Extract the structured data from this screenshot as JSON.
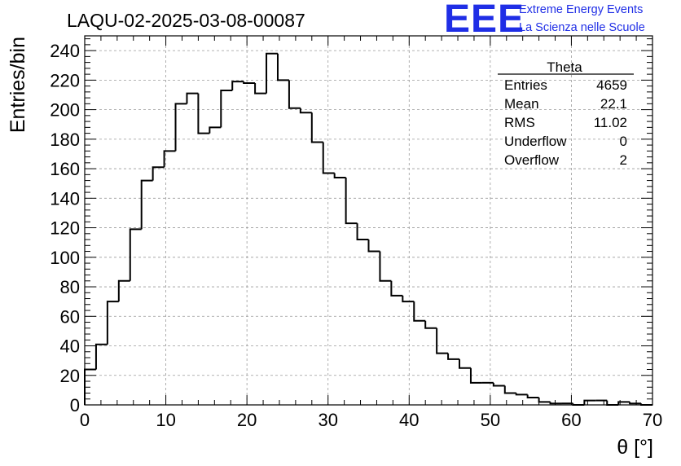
{
  "chart_data": {
    "type": "bar",
    "title": "LAQU-02-2025-03-08-00087",
    "xlabel": "θ [°]",
    "ylabel": "Entries/bin",
    "xlim": [
      0,
      70
    ],
    "ylim": [
      0,
      250
    ],
    "x_ticks": [
      0,
      10,
      20,
      30,
      40,
      50,
      60,
      70
    ],
    "y_ticks": [
      0,
      20,
      40,
      60,
      80,
      100,
      120,
      140,
      160,
      180,
      200,
      220,
      240
    ],
    "grid": true,
    "bin_width": 1.4,
    "bin_low_edges": [
      0,
      1.4,
      2.8,
      4.2,
      5.6,
      7.0,
      8.4,
      9.8,
      11.2,
      12.6,
      14.0,
      15.4,
      16.8,
      18.2,
      19.6,
      21.0,
      22.4,
      23.8,
      25.2,
      26.6,
      28.0,
      29.4,
      30.8,
      32.2,
      33.6,
      35.0,
      36.4,
      37.8,
      39.2,
      40.6,
      42.0,
      43.4,
      44.8,
      46.2,
      47.6,
      49.0,
      50.4,
      51.8,
      53.2,
      54.6,
      56.0,
      57.4,
      58.8,
      60.2,
      61.6,
      63.0,
      64.4,
      65.8,
      67.2,
      68.6
    ],
    "values": [
      24,
      41,
      70,
      84,
      119,
      152,
      161,
      172,
      204,
      211,
      184,
      188,
      213,
      219,
      218,
      211,
      238,
      220,
      201,
      198,
      178,
      157,
      154,
      123,
      112,
      104,
      84,
      74,
      70,
      57,
      52,
      35,
      31,
      25,
      15,
      15,
      13,
      8,
      7,
      5,
      2,
      1,
      1,
      0,
      3,
      3,
      0,
      2,
      1,
      0
    ],
    "stats_box": {
      "title": "Theta",
      "rows": [
        {
          "label": "Entries",
          "value": "4659"
        },
        {
          "label": "Mean",
          "value": "22.1"
        },
        {
          "label": "RMS",
          "value": "11.02"
        },
        {
          "label": "Underflow",
          "value": "0"
        },
        {
          "label": "Overflow",
          "value": "2"
        }
      ]
    }
  },
  "logo": {
    "mark": "EEE",
    "line1": "Extreme Energy Events",
    "line2": "La Scienza nelle Scuole",
    "color": "#1f2ee6"
  }
}
